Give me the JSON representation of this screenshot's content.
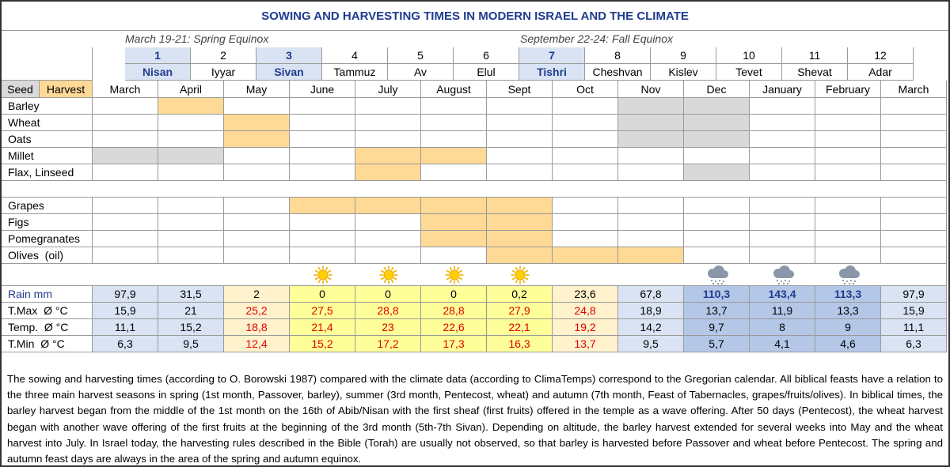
{
  "title": "SOWING AND HARVESTING TIMES IN MODERN ISRAEL AND THE CLIMATE",
  "equinoxes": [
    "March 19-21: Spring Equinox",
    "September 22-24: Fall Equinox"
  ],
  "hebrew_months": [
    {
      "number": 1,
      "name": "Nisan"
    },
    {
      "number": 2,
      "name": "Iyyar"
    },
    {
      "number": 3,
      "name": "Sivan"
    },
    {
      "number": 4,
      "name": "Tammuz"
    },
    {
      "number": 5,
      "name": "Av"
    },
    {
      "number": 6,
      "name": "Elul"
    },
    {
      "number": 7,
      "name": "Tishri"
    },
    {
      "number": 8,
      "name": "Cheshvan"
    },
    {
      "number": 9,
      "name": "Kislev"
    },
    {
      "number": 10,
      "name": "Tevet"
    },
    {
      "number": 11,
      "name": "Shevat"
    },
    {
      "number": 12,
      "name": "Adar"
    }
  ],
  "highlighted_hebrew_months": [
    0,
    2,
    6
  ],
  "legend": {
    "seed": "Seed",
    "harvest": "Harvest",
    "seed_color": "#d9d9d9",
    "harvest_color": "#ffd996"
  },
  "months": [
    "March",
    "April",
    "May",
    "June",
    "July",
    "August",
    "Sept",
    "Oct",
    "Nov",
    "Dec",
    "January",
    "February",
    "March"
  ],
  "crop_groups": [
    [
      {
        "name": "Barley",
        "seed": [
          8,
          9
        ],
        "harvest": [
          1
        ]
      },
      {
        "name": "Wheat",
        "seed": [
          8,
          9
        ],
        "harvest": [
          2
        ]
      },
      {
        "name": "Oats",
        "seed": [
          8,
          9
        ],
        "harvest": [
          2
        ]
      },
      {
        "name": "Millet",
        "seed": [
          0,
          1
        ],
        "harvest": [
          4,
          5
        ]
      },
      {
        "name": "Flax, Linseed",
        "seed": [
          9
        ],
        "harvest": [
          4
        ]
      }
    ],
    [
      {
        "name": "Grapes",
        "seed": [],
        "harvest": [
          3,
          4,
          5,
          6
        ]
      },
      {
        "name": "Figs",
        "seed": [],
        "harvest": [
          5,
          6
        ]
      },
      {
        "name": "Pomegranates",
        "seed": [],
        "harvest": [
          5,
          6
        ]
      },
      {
        "name": "Olives  (oil)",
        "seed": [],
        "harvest": [
          6,
          7,
          8
        ]
      }
    ]
  ],
  "climate": {
    "sun_columns": [
      3,
      4,
      5,
      6
    ],
    "cloud_columns": [
      9,
      10,
      11
    ],
    "column_colors": [
      "#dae3f3",
      "#dae3f3",
      "#fff2cc",
      "#ffff99",
      "#ffff99",
      "#ffff99",
      "#ffff99",
      "#fff2cc",
      "#dae3f3",
      "#b4c7e7",
      "#b4c7e7",
      "#b4c7e7",
      "#dae3f3"
    ],
    "rows": [
      {
        "label": "Rain mm",
        "values": [
          "97,9",
          "31,5",
          "2",
          "0",
          "0",
          "0",
          "0,2",
          "23,6",
          "67,8",
          "110,3",
          "143,4",
          "113,3",
          "97,9"
        ],
        "highlight_columns": [
          9,
          10,
          11
        ],
        "highlight_color": "#1f3c8f",
        "highlight_bold": true,
        "label_color": "#1f3c8f"
      },
      {
        "label": "T.Max  Ø °C",
        "values": [
          "15,9",
          "21",
          "25,2",
          "27,5",
          "28,8",
          "28,8",
          "27,9",
          "24,8",
          "18,9",
          "13,7",
          "11,9",
          "13,3",
          "15,9"
        ],
        "highlight_columns": [
          2,
          3,
          4,
          5,
          6,
          7
        ],
        "highlight_color": "#e00000",
        "highlight_bold": false,
        "label_color": "#000000"
      },
      {
        "label": "Temp.  Ø °C",
        "values": [
          "11,1",
          "15,2",
          "18,8",
          "21,4",
          "23",
          "22,6",
          "22,1",
          "19,2",
          "14,2",
          "9,7",
          "8",
          "9",
          "11,1"
        ],
        "highlight_columns": [
          2,
          3,
          4,
          5,
          6,
          7
        ],
        "highlight_color": "#e00000",
        "highlight_bold": false,
        "label_color": "#000000"
      },
      {
        "label": "T.Min  Ø °C",
        "values": [
          "6,3",
          "9,5",
          "12,4",
          "15,2",
          "17,2",
          "17,3",
          "16,3",
          "13,7",
          "9,5",
          "5,7",
          "4,1",
          "4,6",
          "6,3"
        ],
        "highlight_columns": [
          2,
          3,
          4,
          5,
          6,
          7
        ],
        "highlight_color": "#e00000",
        "highlight_bold": false,
        "label_color": "#000000"
      }
    ]
  },
  "note": "The sowing and harvesting times (according to O. Borowski 1987) compared with the climate data (according to ClimaTemps) correspond to the Gregorian calendar. All biblical feasts have a relation to the three main harvest seasons in spring (1st month, Passover, barley), summer (3rd month, Pentecost, wheat) and autumn (7th month, Feast of Tabernacles, grapes/fruits/olives). In biblical times, the barley harvest began from the middle of the 1st month on the 16th of Abib/Nisan with the first sheaf (first fruits) offered in the temple as a wave offering. After 50 days (Pentecost), the wheat harvest began with another wave offering of the first fruits at the beginning of the 3rd month (5th-7th Sivan). Depending on altitude, the barley harvest extended for several weeks into May and the wheat harvest into July. In Israel today, the harvesting rules described in the Bible (Torah) are usually not observed, so that barley is harvested before Passover and wheat before Pentecost. The spring and autumn feast days are always in the area of the spring and autumn equinox."
}
